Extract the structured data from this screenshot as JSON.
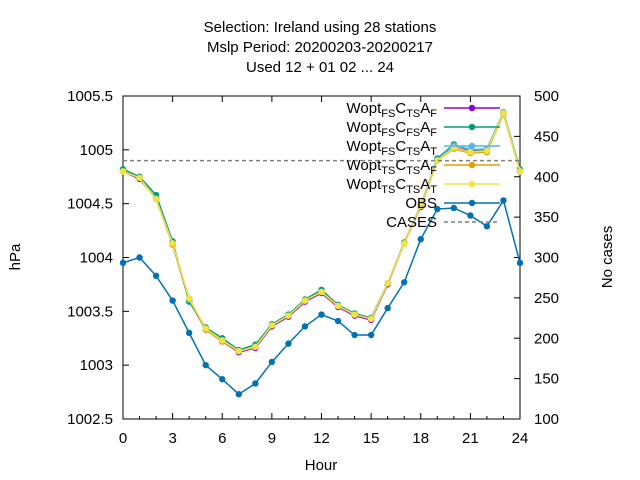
{
  "chart_data": {
    "type": "line",
    "title_lines": [
      "Selection: Ireland using    28 stations",
      "Mslp   Period: 20200203-20200217",
      "Used  12 + 01 02 ... 24"
    ],
    "xlabel": "Hour",
    "ylabel": "hPa",
    "y2label": "No cases",
    "xlim": [
      0,
      24
    ],
    "ylim": [
      1002.5,
      1005.5
    ],
    "y2lim": [
      100,
      500
    ],
    "x_ticks": [
      "0",
      "3",
      "6",
      "9",
      "12",
      "15",
      "18",
      "21",
      "24"
    ],
    "y_ticks": [
      "1002.5",
      "1003",
      "1003.5",
      "1004",
      "1004.5",
      "1005",
      "1005.5"
    ],
    "y2_ticks": [
      "100",
      "150",
      "200",
      "250",
      "300",
      "350",
      "400",
      "450",
      "500"
    ],
    "x": [
      0,
      1,
      2,
      3,
      4,
      5,
      6,
      7,
      8,
      9,
      10,
      11,
      12,
      13,
      14,
      15,
      16,
      17,
      18,
      19,
      20,
      21,
      22,
      23,
      24
    ],
    "series": [
      {
        "name": "Wopt FS C TS A F",
        "color": "#9400d3",
        "axis": "y",
        "values": [
          1004.8,
          1004.73,
          1004.55,
          1004.12,
          1003.6,
          1003.33,
          1003.22,
          1003.12,
          1003.16,
          1003.36,
          1003.45,
          1003.59,
          1003.67,
          1003.54,
          1003.46,
          1003.42,
          1003.75,
          1004.13,
          1004.47,
          1004.9,
          1005.02,
          1004.99,
          1004.98,
          1005.34,
          1004.8
        ]
      },
      {
        "name": "Wopt FS C FS A F",
        "color": "#009e73",
        "axis": "y",
        "values": [
          1004.82,
          1004.75,
          1004.58,
          1004.15,
          1003.59,
          1003.35,
          1003.25,
          1003.14,
          1003.19,
          1003.38,
          1003.47,
          1003.61,
          1003.7,
          1003.56,
          1003.48,
          1003.44,
          1003.76,
          1004.14,
          1004.48,
          1004.92,
          1005.05,
          1005.0,
          1005.0,
          1005.35,
          1004.82
        ]
      },
      {
        "name": "Wopt FS C TS A T",
        "color": "#56b4e9",
        "axis": "y",
        "values": [
          1004.8,
          1004.74,
          1004.55,
          1004.13,
          1003.61,
          1003.34,
          1003.23,
          1003.13,
          1003.17,
          1003.37,
          1003.46,
          1003.6,
          1003.68,
          1003.55,
          1003.47,
          1003.43,
          1003.76,
          1004.13,
          1004.49,
          1004.91,
          1005.04,
          1005.0,
          1005.01,
          1005.35,
          1004.81
        ]
      },
      {
        "name": "Wopt TS C TS A F",
        "color": "#e69f00",
        "axis": "y",
        "values": [
          1004.8,
          1004.74,
          1004.54,
          1004.12,
          1003.62,
          1003.33,
          1003.22,
          1003.13,
          1003.17,
          1003.37,
          1003.46,
          1003.6,
          1003.68,
          1003.55,
          1003.47,
          1003.43,
          1003.76,
          1004.13,
          1004.48,
          1004.9,
          1005.01,
          1004.97,
          1004.98,
          1005.33,
          1004.8
        ]
      },
      {
        "name": "Wopt TS C TS A T",
        "color": "#f0e442",
        "axis": "y",
        "values": [
          1004.8,
          1004.74,
          1004.54,
          1004.13,
          1003.62,
          1003.34,
          1003.23,
          1003.13,
          1003.17,
          1003.37,
          1003.46,
          1003.6,
          1003.68,
          1003.55,
          1003.47,
          1003.43,
          1003.76,
          1004.13,
          1004.48,
          1004.9,
          1005.02,
          1004.98,
          1004.99,
          1005.34,
          1004.8
        ]
      },
      {
        "name": "OBS",
        "color": "#0072b2",
        "axis": "y",
        "values": [
          1003.95,
          1004.0,
          1003.83,
          1003.6,
          1003.3,
          1003.0,
          1002.87,
          1002.73,
          1002.83,
          1003.03,
          1003.2,
          1003.36,
          1003.47,
          1003.41,
          1003.28,
          1003.28,
          1003.53,
          1003.77,
          1004.17,
          1004.45,
          1004.46,
          1004.39,
          1004.29,
          1004.53,
          1003.95
        ]
      },
      {
        "name": "CASES",
        "color": "#808080",
        "axis": "y2",
        "dashed": true,
        "values": [
          420,
          420,
          420,
          420,
          420,
          420,
          420,
          420,
          420,
          420,
          420,
          420,
          420,
          420,
          420,
          420,
          420,
          420,
          420,
          420,
          420,
          420,
          420,
          420,
          420
        ]
      }
    ],
    "legend_placement": "top-right",
    "legend": [
      {
        "main": "Wopt",
        "s1": "FS",
        "c": "C",
        "s2": "TS",
        "a": "A",
        "s3": "F",
        "color": "#9400d3"
      },
      {
        "main": "Wopt",
        "s1": "FS",
        "c": "C",
        "s2": "FS",
        "a": "A",
        "s3": "F",
        "color": "#009e73"
      },
      {
        "main": "Wopt",
        "s1": "FS",
        "c": "C",
        "s2": "TS",
        "a": "A",
        "s3": "T",
        "color": "#56b4e9"
      },
      {
        "main": "Wopt",
        "s1": "TS",
        "c": "C",
        "s2": "TS",
        "a": "A",
        "s3": "F",
        "color": "#e69f00"
      },
      {
        "main": "Wopt",
        "s1": "TS",
        "c": "C",
        "s2": "TS",
        "a": "A",
        "s3": "T",
        "color": "#f0e442"
      },
      {
        "main": "OBS",
        "color": "#0072b2"
      },
      {
        "main": "CASES",
        "color": "#808080",
        "dashed": true
      }
    ],
    "grid": false
  }
}
